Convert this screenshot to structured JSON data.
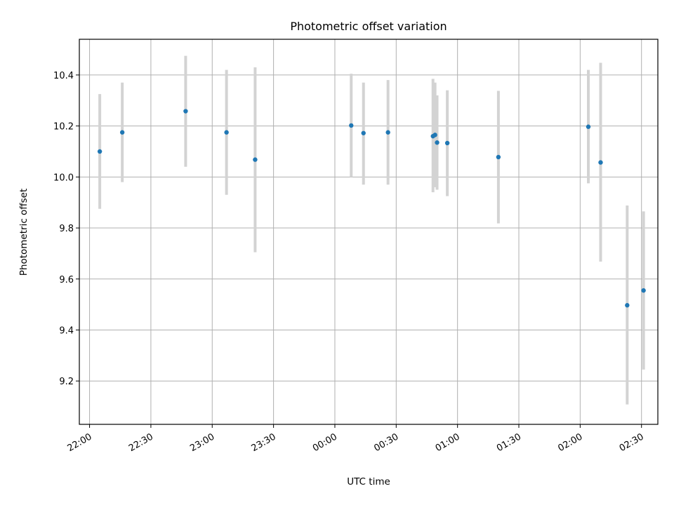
{
  "chart_data": {
    "type": "scatter",
    "title": "Photometric offset variation",
    "xlabel": "UTC time",
    "ylabel": "Photometric offset",
    "x_ticks": [
      "22:00",
      "22:30",
      "23:00",
      "23:30",
      "00:00",
      "00:30",
      "01:00",
      "01:30",
      "02:00",
      "02:30"
    ],
    "y_ticks": [
      "9.2",
      "9.4",
      "9.6",
      "9.8",
      "10.0",
      "10.2",
      "10.4"
    ],
    "xlim": [
      "21:55",
      "02:38"
    ],
    "ylim": [
      9.03,
      10.54
    ],
    "grid": true,
    "colors": {
      "point": "#1f77b4",
      "error_bar": "#d3d3d3",
      "grid": "#b0b0b0",
      "axes": "#000000"
    },
    "points": [
      {
        "time": "22:05",
        "y": 10.1,
        "yerr_low": 9.875,
        "yerr_high": 10.325
      },
      {
        "time": "22:16",
        "y": 10.175,
        "yerr_low": 9.98,
        "yerr_high": 10.37
      },
      {
        "time": "22:47",
        "y": 10.258,
        "yerr_low": 10.04,
        "yerr_high": 10.475
      },
      {
        "time": "23:07",
        "y": 10.175,
        "yerr_low": 9.93,
        "yerr_high": 10.42
      },
      {
        "time": "23:21",
        "y": 10.068,
        "yerr_low": 9.705,
        "yerr_high": 10.43
      },
      {
        "time": "00:08",
        "y": 10.202,
        "yerr_low": 10.0,
        "yerr_high": 10.405
      },
      {
        "time": "00:14",
        "y": 10.172,
        "yerr_low": 9.97,
        "yerr_high": 10.37
      },
      {
        "time": "00:26",
        "y": 10.175,
        "yerr_low": 9.97,
        "yerr_high": 10.38
      },
      {
        "time": "00:48",
        "y": 10.16,
        "yerr_low": 9.94,
        "yerr_high": 10.385
      },
      {
        "time": "00:49",
        "y": 10.165,
        "yerr_low": 9.96,
        "yerr_high": 10.37
      },
      {
        "time": "00:50",
        "y": 10.135,
        "yerr_low": 9.95,
        "yerr_high": 10.32
      },
      {
        "time": "00:55",
        "y": 10.133,
        "yerr_low": 9.925,
        "yerr_high": 10.34
      },
      {
        "time": "01:20",
        "y": 10.078,
        "yerr_low": 9.818,
        "yerr_high": 10.338
      },
      {
        "time": "02:04",
        "y": 10.197,
        "yerr_low": 9.975,
        "yerr_high": 10.42
      },
      {
        "time": "02:10",
        "y": 10.057,
        "yerr_low": 9.668,
        "yerr_high": 10.448
      },
      {
        "time": "02:23",
        "y": 9.497,
        "yerr_low": 9.108,
        "yerr_high": 9.888
      },
      {
        "time": "02:31",
        "y": 9.555,
        "yerr_low": 9.245,
        "yerr_high": 9.865
      }
    ]
  }
}
